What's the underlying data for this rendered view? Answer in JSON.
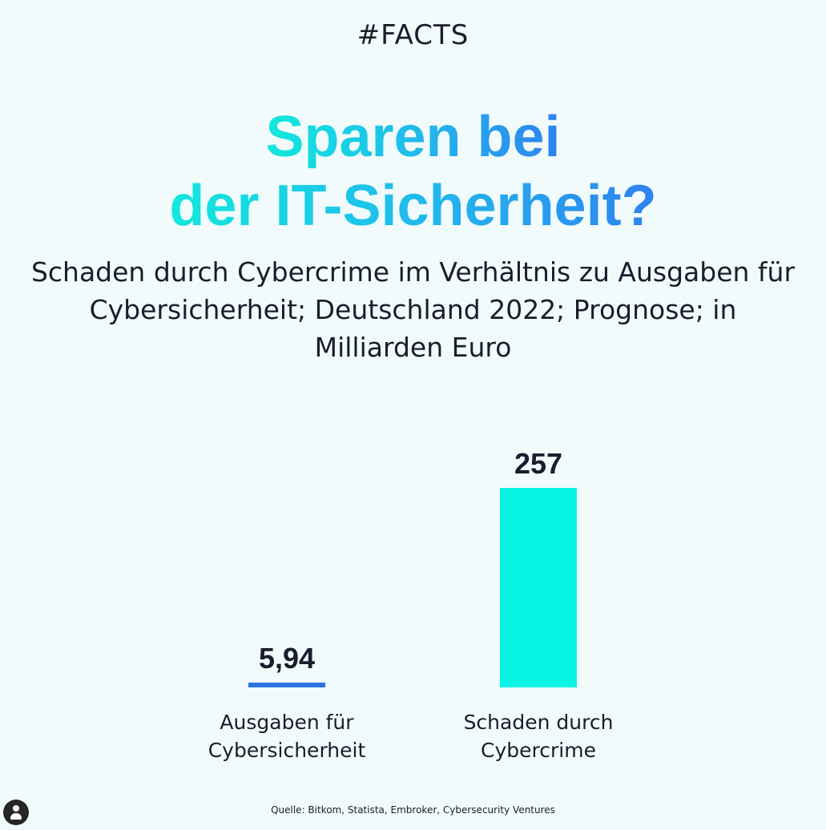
{
  "header": {
    "tag": "#FACTS",
    "title_line1": "Sparen bei",
    "title_line2": "der IT-Sicherheit?",
    "subtitle": "Schaden durch Cybercrime im Verhältnis zu Ausgaben für Cybersicherheit; Deutschland 2022; Prognose; in Milliarden Euro"
  },
  "colors": {
    "background": "#f1fbfc",
    "text": "#1a1d2c",
    "title_gradient_start": "#12e8dd",
    "title_gradient_end": "#2f82ee"
  },
  "chart_data": {
    "type": "bar",
    "categories": [
      "Ausgaben für Cybersicherheit",
      "Schaden durch Cybercrime"
    ],
    "category_lines": [
      [
        "Ausgaben für",
        "Cybersicherheit"
      ],
      [
        "Schaden durch",
        "Cybercrime"
      ]
    ],
    "values": [
      5.94,
      257
    ],
    "value_labels": [
      "5,94",
      "257"
    ],
    "bar_colors": [
      "#2a74e0",
      "#07f4e4"
    ],
    "ylim": [
      0,
      257
    ],
    "grid": false,
    "legend": "none"
  },
  "footer": {
    "source": "Quelle: Bitkom, Statista, Embroker, Cybersecurity Ventures"
  },
  "avatar_icon": "user-avatar-icon"
}
